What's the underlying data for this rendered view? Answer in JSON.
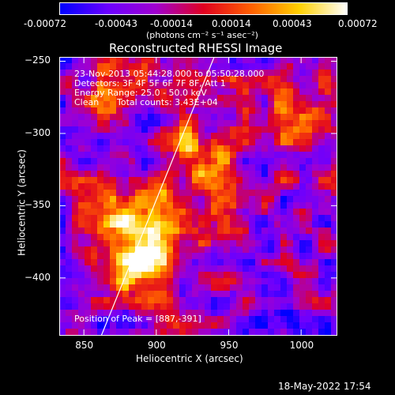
{
  "colorbar": {
    "ticks": [
      "-0.00072",
      "-0.00043",
      "-0.00014",
      "0.00014",
      "0.00043",
      "0.00072"
    ],
    "unit_label": "(photons cm⁻² s⁻¹ asec⁻²)",
    "gradient": [
      "#0000ff",
      "#6b00ff",
      "#a000d0",
      "#e00020",
      "#ff6000",
      "#ffd000",
      "#ffffff"
    ]
  },
  "title": "Reconstructed RHESSI Image",
  "overlay": {
    "time_range": "23-Nov-2013 05:44:28.000 to 05:50:28.000",
    "detectors": "Detectors: 3F 4F 5F 6F 7F 8F, Att 1",
    "energy": "Energy Range: 25.0 - 50.0 keV",
    "clean": "Clean",
    "total_counts": "Total counts: 3.43E+04",
    "peak": "Position of Peak = [887,-391]"
  },
  "x_axis": {
    "label": "Heliocentric X (arcsec)",
    "range": [
      833,
      1025
    ],
    "ticks": [
      850,
      900,
      950,
      1000
    ]
  },
  "y_axis": {
    "label": "Heliocentric Y (arcsec)",
    "range": [
      -440,
      -247
    ],
    "ticks": [
      -250,
      -300,
      -350,
      -400
    ]
  },
  "limb_line": {
    "points": [
      [
        862,
        -440
      ],
      [
        940,
        -247
      ]
    ]
  },
  "timestamp": "18-May-2022 17:54"
}
